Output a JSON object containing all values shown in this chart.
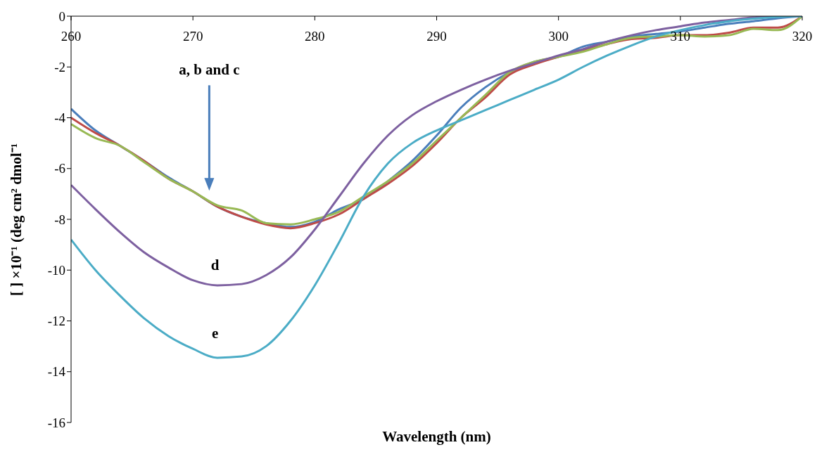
{
  "chart_data": {
    "type": "line",
    "xlabel": "Wavelength (nm)",
    "ylabel": "[ ] ×10⁻¹ (deg cm² dmol⁻¹",
    "x": [
      260,
      262,
      264,
      266,
      268,
      270,
      272,
      274,
      276,
      278,
      280,
      282,
      284,
      286,
      288,
      290,
      292,
      294,
      296,
      298,
      300,
      302,
      304,
      306,
      308,
      310,
      312,
      314,
      316,
      318,
      320
    ],
    "series": [
      {
        "color": "#4a7ebb",
        "values": [
          -3.65,
          -4.5,
          -5.1,
          -5.7,
          -6.35,
          -6.9,
          -7.5,
          -7.9,
          -8.15,
          -8.3,
          -8.1,
          -7.6,
          -7.2,
          -6.5,
          -5.7,
          -4.7,
          -3.6,
          -2.8,
          -2.2,
          -1.8,
          -1.6,
          -1.2,
          -1.0,
          -0.8,
          -0.7,
          -0.6,
          -0.45,
          -0.3,
          -0.2,
          -0.08,
          0
        ]
      },
      {
        "color": "#be4b48",
        "values": [
          -4.0,
          -4.6,
          -5.1,
          -5.7,
          -6.4,
          -6.9,
          -7.5,
          -7.9,
          -8.2,
          -8.35,
          -8.15,
          -7.8,
          -7.2,
          -6.6,
          -5.9,
          -5.0,
          -4.0,
          -3.2,
          -2.3,
          -1.9,
          -1.6,
          -1.35,
          -1.1,
          -0.9,
          -0.85,
          -0.75,
          -0.75,
          -0.65,
          -0.45,
          -0.45,
          0
        ]
      },
      {
        "color": "#98b954",
        "values": [
          -4.25,
          -4.8,
          -5.1,
          -5.75,
          -6.4,
          -6.9,
          -7.45,
          -7.65,
          -8.15,
          -8.2,
          -8.0,
          -7.7,
          -7.1,
          -6.5,
          -5.8,
          -4.9,
          -4.0,
          -3.1,
          -2.2,
          -1.8,
          -1.6,
          -1.4,
          -1.1,
          -0.85,
          -0.8,
          -0.75,
          -0.8,
          -0.75,
          -0.5,
          -0.55,
          0
        ]
      },
      {
        "color": "#7d60a0",
        "values": [
          -6.65,
          -7.6,
          -8.5,
          -9.3,
          -9.9,
          -10.4,
          -10.6,
          -10.55,
          -10.2,
          -9.5,
          -8.4,
          -7.1,
          -5.8,
          -4.7,
          -3.9,
          -3.35,
          -2.9,
          -2.5,
          -2.15,
          -1.85,
          -1.55,
          -1.3,
          -1.0,
          -0.75,
          -0.55,
          -0.4,
          -0.25,
          -0.15,
          -0.05,
          0,
          0
        ]
      },
      {
        "color": "#4bacc6",
        "values": [
          -8.8,
          -10.0,
          -11.0,
          -11.9,
          -12.6,
          -13.1,
          -13.45,
          -13.4,
          -13.0,
          -12.0,
          -10.6,
          -8.9,
          -7.1,
          -5.8,
          -5.0,
          -4.5,
          -4.1,
          -3.7,
          -3.3,
          -2.9,
          -2.5,
          -2.0,
          -1.55,
          -1.15,
          -0.8,
          -0.55,
          -0.35,
          -0.2,
          -0.1,
          -0.03,
          0
        ]
      }
    ],
    "annotations": [
      "a, b and c",
      "d",
      "e"
    ],
    "xlim": [
      260,
      320
    ],
    "xticks": [
      260,
      270,
      280,
      290,
      300,
      310,
      320
    ],
    "ylim": [
      -16,
      0
    ],
    "yticks": [
      -16,
      -14,
      -12,
      -10,
      -8,
      -6,
      -4,
      -2,
      0
    ],
    "grid": false,
    "legend": false,
    "marker": "none",
    "line_style": "solid"
  }
}
